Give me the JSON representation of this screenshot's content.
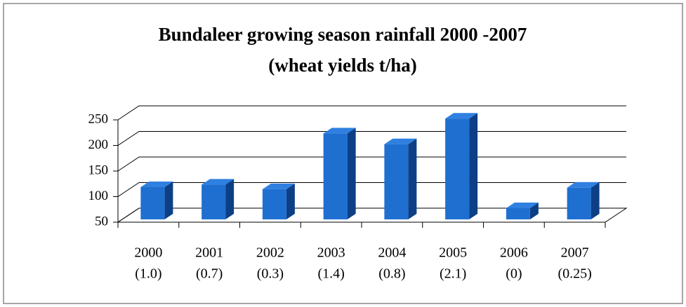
{
  "chart_data": {
    "type": "bar3d",
    "title": [
      "Bundaleer growing season rainfall 2000 -2007",
      "(wheat yields t/ha)"
    ],
    "categories": [
      [
        "2000",
        "(1.0)"
      ],
      [
        "2001",
        "(0.7)"
      ],
      [
        "2002",
        "(0.3)"
      ],
      [
        "2003",
        "(1.4)"
      ],
      [
        "2004",
        "(0.8)"
      ],
      [
        "2005",
        "(2.1)"
      ],
      [
        "2006",
        "(0)"
      ],
      [
        "2007",
        "(0.25)"
      ]
    ],
    "values": [
      113,
      118,
      109,
      218,
      197,
      247,
      72,
      112
    ],
    "color": "#1f6fd1",
    "ylim": [
      50,
      250
    ],
    "yticks": [
      50,
      100,
      150,
      200,
      250
    ],
    "grid": true
  }
}
